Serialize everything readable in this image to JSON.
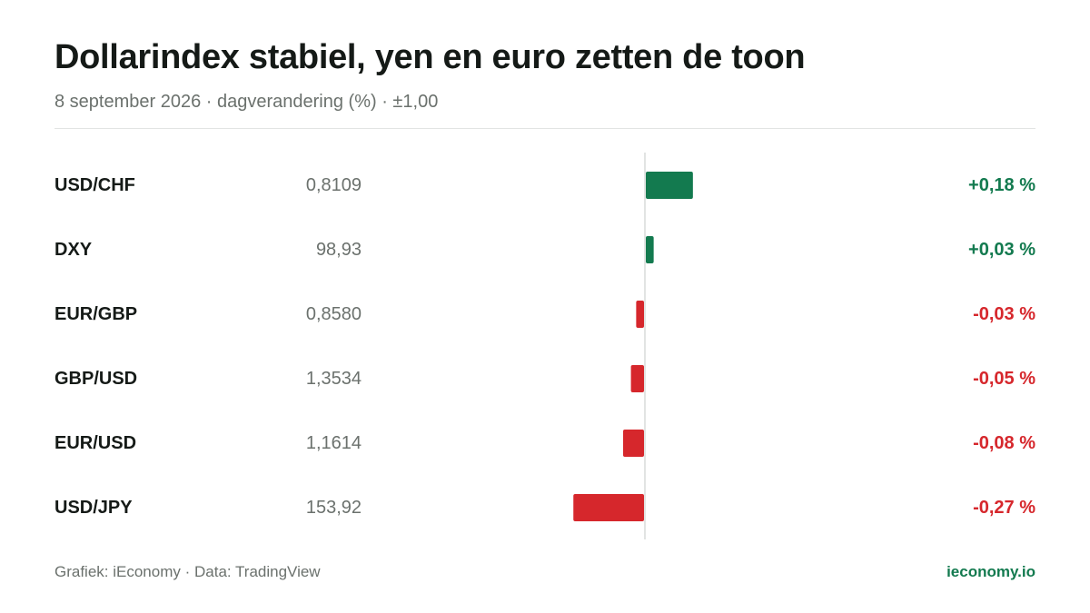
{
  "title": "Dollarindex stabiel, yen en euro zetten de toon",
  "subtitle": "8 september 2026 · dagverandering (%) · ±1,00",
  "colors": {
    "positive": "#137a4f",
    "negative": "#d6272c",
    "zero_line": "#d9dcda"
  },
  "chart_data": {
    "type": "bar",
    "orientation": "horizontal",
    "categories": [
      "USD/CHF",
      "DXY",
      "EUR/GBP",
      "GBP/USD",
      "EUR/USD",
      "USD/JPY"
    ],
    "prices": [
      "0,8109",
      "98,93",
      "0,8580",
      "1,3534",
      "1,1614",
      "153,92"
    ],
    "values": [
      0.18,
      0.03,
      -0.03,
      -0.05,
      -0.08,
      -0.27
    ],
    "value_labels": [
      "+0,18 %",
      "+0,03 %",
      "-0,03 %",
      "-0,05 %",
      "-0,08 %",
      "-0,27 %"
    ],
    "xlim": [
      -1,
      1
    ],
    "grid": false
  },
  "footer": {
    "source": "Grafiek: iEconomy · Data: TradingView",
    "brand": "ieconomy.io"
  }
}
